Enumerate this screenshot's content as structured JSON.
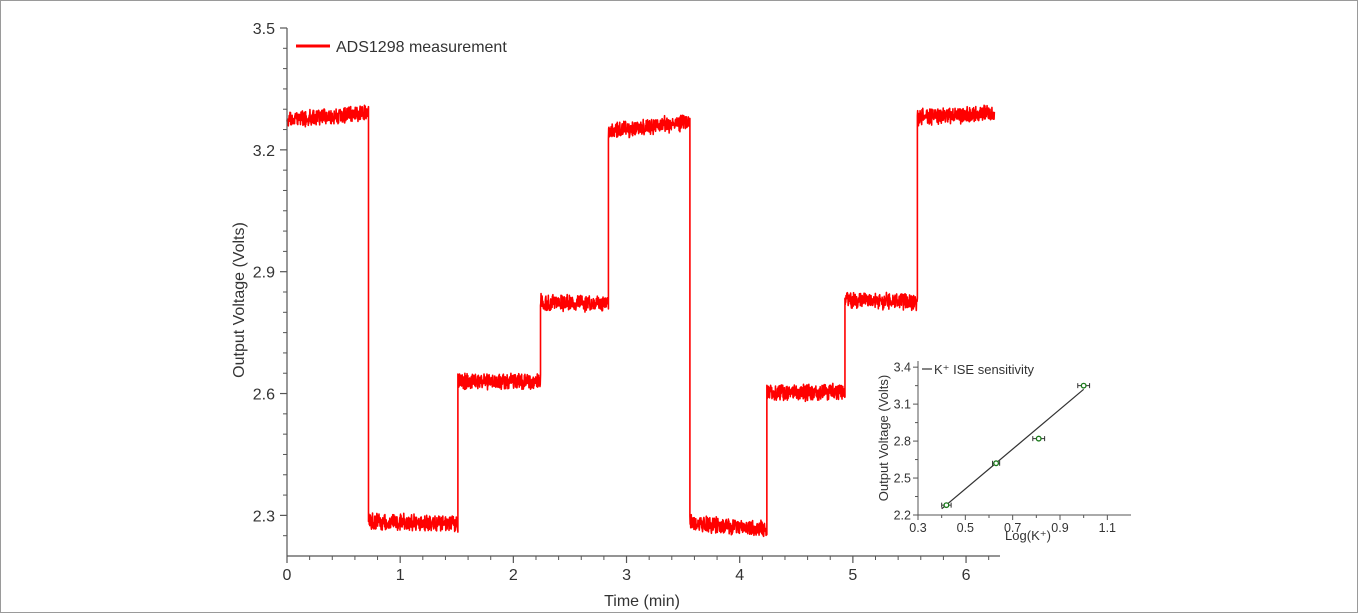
{
  "chart_data": [
    {
      "type": "line",
      "title": "",
      "xlabel": "Time (min)",
      "ylabel": "Output Voltage (Volts)",
      "xlim": [
        0,
        6.3
      ],
      "ylim": [
        2.2,
        3.5
      ],
      "xticks": [
        "0",
        "1",
        "2",
        "3",
        "4",
        "5",
        "6"
      ],
      "yticks": [
        "2.3",
        "2.6",
        "2.9",
        "3.2",
        "3.5"
      ],
      "legend_position": "top-left",
      "grid": false,
      "series": [
        {
          "name": "ADS1298 measurement",
          "color": "#ff0000",
          "noise_band": 0.035,
          "segments": [
            {
              "x_start": 0.0,
              "x_end": 0.72,
              "y_start": 3.275,
              "y_end": 3.29
            },
            {
              "x_start": 0.72,
              "x_end": 1.51,
              "y_start": 2.285,
              "y_end": 2.28
            },
            {
              "x_start": 1.51,
              "x_end": 2.24,
              "y_start": 2.63,
              "y_end": 2.63
            },
            {
              "x_start": 2.24,
              "x_end": 2.84,
              "y_start": 2.825,
              "y_end": 2.82
            },
            {
              "x_start": 2.84,
              "x_end": 3.56,
              "y_start": 3.245,
              "y_end": 3.27
            },
            {
              "x_start": 3.56,
              "x_end": 4.24,
              "y_start": 2.28,
              "y_end": 2.265
            },
            {
              "x_start": 4.24,
              "x_end": 4.93,
              "y_start": 2.6,
              "y_end": 2.605
            },
            {
              "x_start": 4.93,
              "x_end": 5.57,
              "y_start": 2.83,
              "y_end": 2.825
            },
            {
              "x_start": 5.57,
              "x_end": 6.25,
              "y_start": 3.28,
              "y_end": 3.29
            }
          ]
        }
      ]
    },
    {
      "type": "scatter",
      "title": "",
      "xlabel": "Log(K⁺)",
      "ylabel": "Output Voltage (Volts)",
      "xlim": [
        0.3,
        1.2
      ],
      "ylim": [
        2.2,
        3.45
      ],
      "xticks": [
        "0.3",
        "0.5",
        "0.7",
        "0.9",
        "1.1"
      ],
      "yticks": [
        "2.2",
        "2.5",
        "2.8",
        "3.1",
        "3.4"
      ],
      "legend_position": "top-left",
      "series": [
        {
          "name": "K⁺ ISE sensitivity",
          "point_color": "#1a7a1a",
          "fit_color": "#333333",
          "points": [
            {
              "x": 0.42,
              "y": 2.28,
              "xerr": 0.02
            },
            {
              "x": 0.63,
              "y": 2.62,
              "xerr": 0.015
            },
            {
              "x": 0.81,
              "y": 2.82,
              "xerr": 0.025
            },
            {
              "x": 1.0,
              "y": 3.25,
              "xerr": 0.025
            }
          ],
          "fit": {
            "x": [
              0.4,
              1.0
            ],
            "y": [
              2.25,
              3.22
            ]
          }
        }
      ]
    }
  ]
}
